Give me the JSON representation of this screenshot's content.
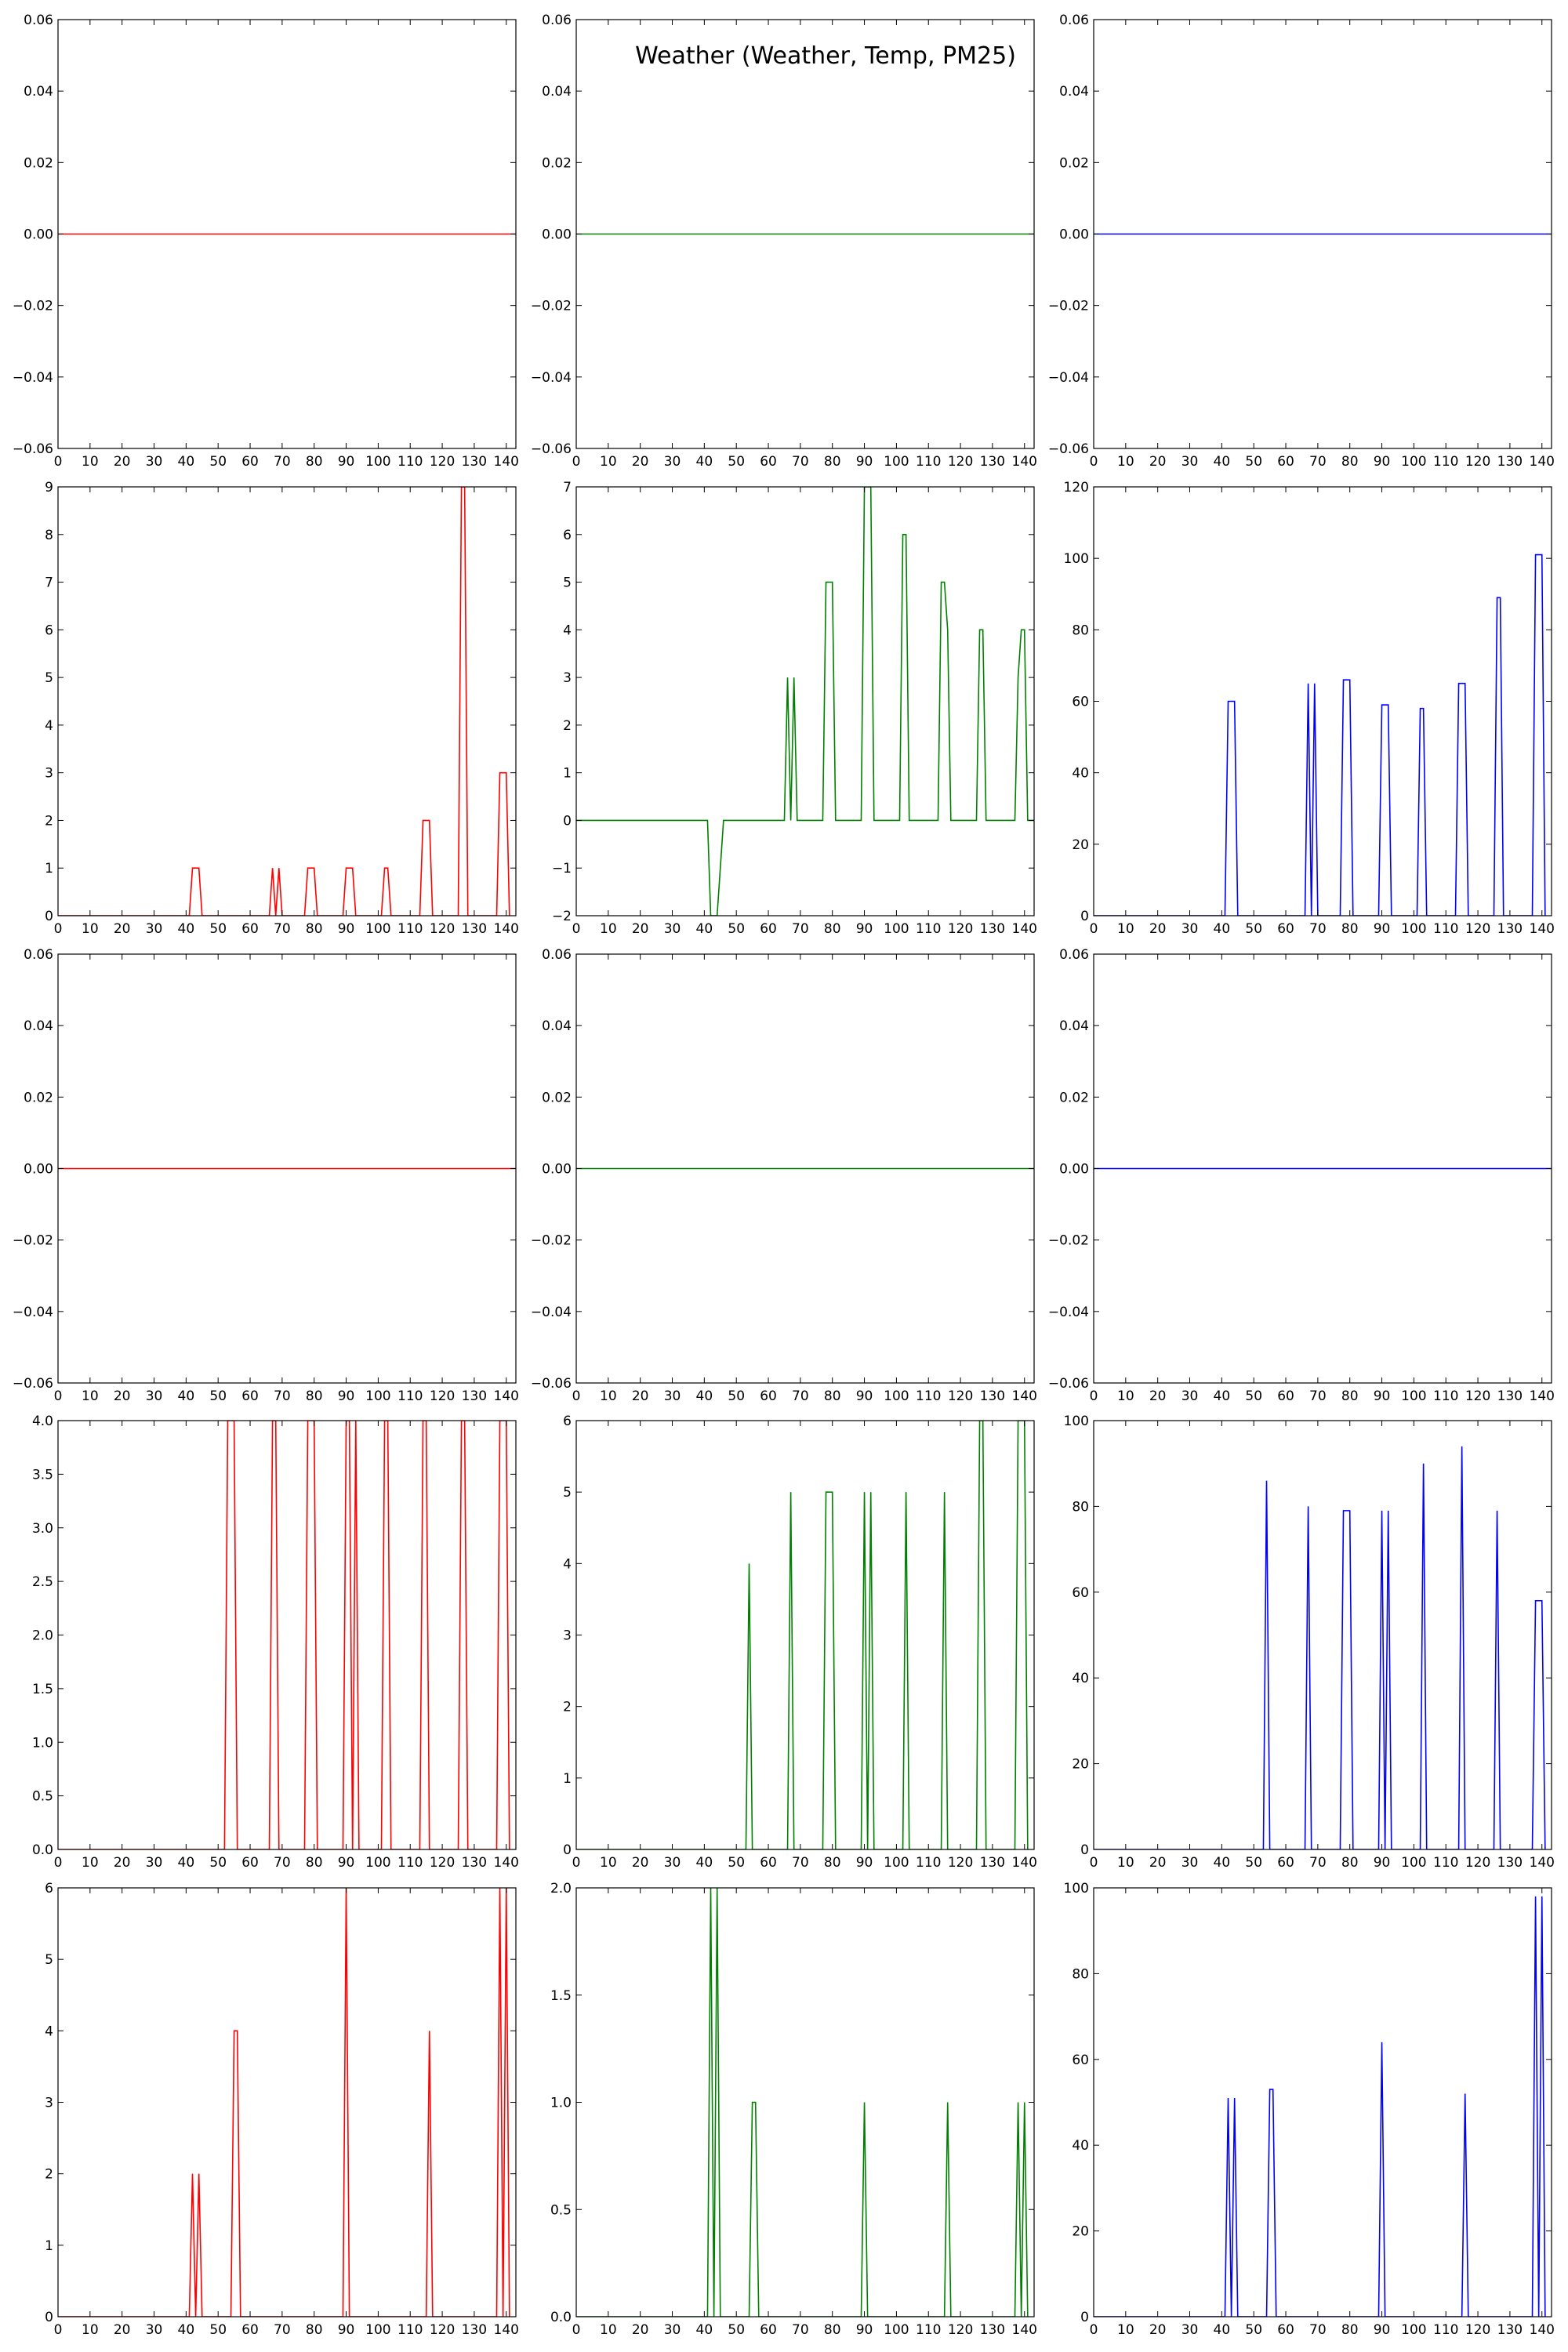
{
  "figure": {
    "title": "Weather (Weather, Temp, PM25)",
    "colors": [
      "#ff0000",
      "#008000",
      "#0000ff"
    ]
  },
  "chart_data": [
    {
      "type": "line",
      "color": "#ff0000",
      "xlim": [
        0,
        143
      ],
      "ylim": [
        -0.06,
        0.06
      ],
      "xticks": [
        0,
        10,
        20,
        30,
        40,
        50,
        60,
        70,
        80,
        90,
        100,
        110,
        120,
        130,
        140
      ],
      "yticks": [
        "−0.06",
        "−0.04",
        "−0.02",
        "0.00",
        "0.02",
        "0.04",
        "0.06"
      ],
      "ytick_values": [
        -0.06,
        -0.04,
        -0.02,
        0,
        0.02,
        0.04,
        0.06
      ],
      "x": [
        0,
        143
      ],
      "y": [
        0,
        0
      ]
    },
    {
      "type": "line",
      "color": "#008000",
      "xlim": [
        0,
        143
      ],
      "ylim": [
        -0.06,
        0.06
      ],
      "xticks": [
        0,
        10,
        20,
        30,
        40,
        50,
        60,
        70,
        80,
        90,
        100,
        110,
        120,
        130,
        140
      ],
      "yticks": [
        "−0.06",
        "−0.04",
        "−0.02",
        "0.00",
        "0.02",
        "0.04",
        "0.06"
      ],
      "ytick_values": [
        -0.06,
        -0.04,
        -0.02,
        0,
        0.02,
        0.04,
        0.06
      ],
      "x": [
        0,
        143
      ],
      "y": [
        0,
        0
      ]
    },
    {
      "type": "line",
      "color": "#0000ff",
      "xlim": [
        0,
        143
      ],
      "ylim": [
        -0.06,
        0.06
      ],
      "xticks": [
        0,
        10,
        20,
        30,
        40,
        50,
        60,
        70,
        80,
        90,
        100,
        110,
        120,
        130,
        140
      ],
      "yticks": [
        "−0.06",
        "−0.04",
        "−0.02",
        "0.00",
        "0.02",
        "0.04",
        "0.06"
      ],
      "ytick_values": [
        -0.06,
        -0.04,
        -0.02,
        0,
        0.02,
        0.04,
        0.06
      ],
      "x": [
        0,
        143
      ],
      "y": [
        0,
        0
      ]
    },
    {
      "type": "line",
      "color": "#ff0000",
      "xlim": [
        0,
        143
      ],
      "ylim": [
        0,
        9
      ],
      "xticks": [
        0,
        10,
        20,
        30,
        40,
        50,
        60,
        70,
        80,
        90,
        100,
        110,
        120,
        130,
        140
      ],
      "yticks": [
        "0",
        "1",
        "2",
        "3",
        "4",
        "5",
        "6",
        "7",
        "8",
        "9"
      ],
      "ytick_values": [
        0,
        1,
        2,
        3,
        4,
        5,
        6,
        7,
        8,
        9
      ],
      "x": [
        0,
        41,
        42,
        44,
        45,
        66,
        67,
        68,
        69,
        70,
        77,
        78,
        80,
        81,
        89,
        90,
        92,
        93,
        101,
        102,
        103,
        104,
        113,
        114,
        116,
        117,
        125,
        126,
        127,
        128,
        137,
        138,
        140,
        141
      ],
      "y": [
        0,
        0,
        1,
        1,
        0,
        0,
        1,
        0,
        1,
        0,
        0,
        1,
        1,
        0,
        0,
        1,
        1,
        0,
        0,
        1,
        1,
        0,
        0,
        2,
        2,
        0,
        0,
        9,
        9,
        0,
        0,
        3,
        3,
        0
      ]
    },
    {
      "type": "line",
      "color": "#008000",
      "xlim": [
        0,
        143
      ],
      "ylim": [
        -2,
        7
      ],
      "xticks": [
        0,
        10,
        20,
        30,
        40,
        50,
        60,
        70,
        80,
        90,
        100,
        110,
        120,
        130,
        140
      ],
      "yticks": [
        "−2",
        "−1",
        "0",
        "1",
        "2",
        "3",
        "4",
        "5",
        "6",
        "7"
      ],
      "ytick_values": [
        -2,
        -1,
        0,
        1,
        2,
        3,
        4,
        5,
        6,
        7
      ],
      "x": [
        0,
        41,
        42,
        44,
        46,
        65,
        66,
        67,
        68,
        69,
        77,
        78,
        80,
        81,
        89,
        90,
        92,
        93,
        101,
        102,
        103,
        104,
        113,
        114,
        115,
        116,
        117,
        125,
        126,
        127,
        128,
        137,
        138,
        139,
        140,
        141,
        143
      ],
      "y": [
        0,
        0,
        -2,
        -2,
        0,
        0,
        3,
        0,
        3,
        0,
        0,
        5,
        5,
        0,
        0,
        7,
        7,
        0,
        0,
        6,
        6,
        0,
        0,
        5,
        5,
        4,
        0,
        0,
        4,
        4,
        0,
        0,
        3,
        4,
        4,
        0,
        0
      ]
    },
    {
      "type": "line",
      "color": "#0000ff",
      "xlim": [
        0,
        143
      ],
      "ylim": [
        0,
        120
      ],
      "xticks": [
        0,
        10,
        20,
        30,
        40,
        50,
        60,
        70,
        80,
        90,
        100,
        110,
        120,
        130,
        140
      ],
      "yticks": [
        "0",
        "20",
        "40",
        "60",
        "80",
        "100",
        "120"
      ],
      "ytick_values": [
        0,
        20,
        40,
        60,
        80,
        100,
        120
      ],
      "x": [
        0,
        41,
        42,
        44,
        45,
        66,
        67,
        68,
        69,
        70,
        77,
        78,
        80,
        81,
        89,
        90,
        92,
        93,
        101,
        102,
        103,
        104,
        113,
        114,
        116,
        117,
        125,
        126,
        127,
        128,
        137,
        138,
        140,
        141
      ],
      "y": [
        0,
        0,
        60,
        60,
        0,
        0,
        65,
        0,
        65,
        0,
        0,
        66,
        66,
        0,
        0,
        59,
        59,
        0,
        0,
        58,
        58,
        0,
        0,
        65,
        65,
        0,
        0,
        89,
        89,
        0,
        0,
        101,
        101,
        0
      ]
    },
    {
      "type": "line",
      "color": "#ff0000",
      "xlim": [
        0,
        143
      ],
      "ylim": [
        -0.06,
        0.06
      ],
      "xticks": [
        0,
        10,
        20,
        30,
        40,
        50,
        60,
        70,
        80,
        90,
        100,
        110,
        120,
        130,
        140
      ],
      "yticks": [
        "−0.06",
        "−0.04",
        "−0.02",
        "0.00",
        "0.02",
        "0.04",
        "0.06"
      ],
      "ytick_values": [
        -0.06,
        -0.04,
        -0.02,
        0,
        0.02,
        0.04,
        0.06
      ],
      "x": [
        0,
        143
      ],
      "y": [
        0,
        0
      ]
    },
    {
      "type": "line",
      "color": "#008000",
      "xlim": [
        0,
        143
      ],
      "ylim": [
        -0.06,
        0.06
      ],
      "xticks": [
        0,
        10,
        20,
        30,
        40,
        50,
        60,
        70,
        80,
        90,
        100,
        110,
        120,
        130,
        140
      ],
      "yticks": [
        "−0.06",
        "−0.04",
        "−0.02",
        "0.00",
        "0.02",
        "0.04",
        "0.06"
      ],
      "ytick_values": [
        -0.06,
        -0.04,
        -0.02,
        0,
        0.02,
        0.04,
        0.06
      ],
      "x": [
        0,
        143
      ],
      "y": [
        0,
        0
      ]
    },
    {
      "type": "line",
      "color": "#0000ff",
      "xlim": [
        0,
        143
      ],
      "ylim": [
        -0.06,
        0.06
      ],
      "xticks": [
        0,
        10,
        20,
        30,
        40,
        50,
        60,
        70,
        80,
        90,
        100,
        110,
        120,
        130,
        140
      ],
      "yticks": [
        "−0.06",
        "−0.04",
        "−0.02",
        "0.00",
        "0.02",
        "0.04",
        "0.06"
      ],
      "ytick_values": [
        -0.06,
        -0.04,
        -0.02,
        0,
        0.02,
        0.04,
        0.06
      ],
      "x": [
        0,
        143
      ],
      "y": [
        0,
        0
      ]
    },
    {
      "type": "line",
      "color": "#ff0000",
      "xlim": [
        0,
        143
      ],
      "ylim": [
        0,
        4
      ],
      "xticks": [
        0,
        10,
        20,
        30,
        40,
        50,
        60,
        70,
        80,
        90,
        100,
        110,
        120,
        130,
        140
      ],
      "yticks": [
        "0.0",
        "0.5",
        "1.0",
        "1.5",
        "2.0",
        "2.5",
        "3.0",
        "3.5",
        "4.0"
      ],
      "ytick_values": [
        0,
        0.5,
        1,
        1.5,
        2,
        2.5,
        3,
        3.5,
        4
      ],
      "x": [
        0,
        52,
        53,
        55,
        56,
        66,
        67,
        68,
        69,
        77,
        78,
        80,
        81,
        89,
        90,
        91,
        92,
        93,
        94,
        101,
        102,
        103,
        104,
        113,
        114,
        115,
        116,
        125,
        126,
        127,
        128,
        137,
        138,
        140,
        141
      ],
      "y": [
        0,
        0,
        4,
        4,
        0,
        0,
        4,
        4,
        0,
        0,
        4,
        4,
        0,
        0,
        4,
        4,
        0,
        4,
        0,
        0,
        4,
        4,
        0,
        0,
        4,
        4,
        0,
        0,
        4,
        4,
        0,
        0,
        4,
        4,
        0
      ]
    },
    {
      "type": "line",
      "color": "#008000",
      "xlim": [
        0,
        143
      ],
      "ylim": [
        0,
        6
      ],
      "xticks": [
        0,
        10,
        20,
        30,
        40,
        50,
        60,
        70,
        80,
        90,
        100,
        110,
        120,
        130,
        140
      ],
      "yticks": [
        "0",
        "1",
        "2",
        "3",
        "4",
        "5",
        "6"
      ],
      "ytick_values": [
        0,
        1,
        2,
        3,
        4,
        5,
        6
      ],
      "x": [
        0,
        53,
        54,
        55,
        66,
        67,
        68,
        77,
        78,
        80,
        81,
        89,
        90,
        91,
        92,
        93,
        102,
        103,
        104,
        114,
        115,
        116,
        125,
        126,
        127,
        128,
        137,
        138,
        140,
        141
      ],
      "y": [
        0,
        0,
        4,
        0,
        0,
        5,
        0,
        0,
        5,
        5,
        0,
        0,
        5,
        0,
        5,
        0,
        0,
        5,
        0,
        0,
        5,
        0,
        0,
        6,
        6,
        0,
        0,
        6,
        6,
        0
      ]
    },
    {
      "type": "line",
      "color": "#0000ff",
      "xlim": [
        0,
        143
      ],
      "ylim": [
        0,
        100
      ],
      "xticks": [
        0,
        10,
        20,
        30,
        40,
        50,
        60,
        70,
        80,
        90,
        100,
        110,
        120,
        130,
        140
      ],
      "yticks": [
        "0",
        "20",
        "40",
        "60",
        "80",
        "100"
      ],
      "ytick_values": [
        0,
        20,
        40,
        60,
        80,
        100
      ],
      "x": [
        0,
        53,
        54,
        55,
        66,
        67,
        68,
        77,
        78,
        80,
        81,
        89,
        90,
        91,
        92,
        93,
        102,
        103,
        104,
        114,
        115,
        116,
        125,
        126,
        127,
        137,
        138,
        140,
        141
      ],
      "y": [
        0,
        0,
        86,
        0,
        0,
        80,
        0,
        0,
        79,
        79,
        0,
        0,
        79,
        0,
        79,
        0,
        0,
        90,
        0,
        0,
        94,
        0,
        0,
        79,
        0,
        0,
        58,
        58,
        0
      ]
    },
    {
      "type": "line",
      "color": "#ff0000",
      "xlim": [
        0,
        143
      ],
      "ylim": [
        0,
        6
      ],
      "xticks": [
        0,
        10,
        20,
        30,
        40,
        50,
        60,
        70,
        80,
        90,
        100,
        110,
        120,
        130,
        140
      ],
      "yticks": [
        "0",
        "1",
        "2",
        "3",
        "4",
        "5",
        "6"
      ],
      "ytick_values": [
        0,
        1,
        2,
        3,
        4,
        5,
        6
      ],
      "x": [
        0,
        41,
        42,
        43,
        44,
        45,
        54,
        55,
        56,
        57,
        89,
        90,
        91,
        115,
        116,
        117,
        137,
        138,
        139,
        140,
        141
      ],
      "y": [
        0,
        0,
        2,
        0,
        2,
        0,
        0,
        4,
        4,
        0,
        0,
        6,
        0,
        0,
        4,
        0,
        0,
        6,
        0,
        6,
        0
      ]
    },
    {
      "type": "line",
      "color": "#008000",
      "xlim": [
        0,
        143
      ],
      "ylim": [
        0,
        2
      ],
      "xticks": [
        0,
        10,
        20,
        30,
        40,
        50,
        60,
        70,
        80,
        90,
        100,
        110,
        120,
        130,
        140
      ],
      "yticks": [
        "0.0",
        "0.5",
        "1.0",
        "1.5",
        "2.0"
      ],
      "ytick_values": [
        0,
        0.5,
        1,
        1.5,
        2
      ],
      "x": [
        0,
        41,
        42,
        43,
        44,
        45,
        54,
        55,
        56,
        57,
        89,
        90,
        91,
        115,
        116,
        117,
        137,
        138,
        139,
        140,
        141
      ],
      "y": [
        0,
        0,
        2,
        0,
        2,
        0,
        0,
        1,
        1,
        0,
        0,
        1,
        0,
        0,
        1,
        0,
        0,
        1,
        0,
        1,
        0
      ]
    },
    {
      "type": "line",
      "color": "#0000ff",
      "xlim": [
        0,
        143
      ],
      "ylim": [
        0,
        100
      ],
      "xticks": [
        0,
        10,
        20,
        30,
        40,
        50,
        60,
        70,
        80,
        90,
        100,
        110,
        120,
        130,
        140
      ],
      "yticks": [
        "0",
        "20",
        "40",
        "60",
        "80",
        "100"
      ],
      "ytick_values": [
        0,
        20,
        40,
        60,
        80,
        100
      ],
      "x": [
        0,
        41,
        42,
        43,
        44,
        45,
        54,
        55,
        56,
        57,
        89,
        90,
        91,
        115,
        116,
        117,
        137,
        138,
        139,
        140,
        141
      ],
      "y": [
        0,
        0,
        51,
        0,
        51,
        0,
        0,
        53,
        53,
        0,
        0,
        64,
        0,
        0,
        52,
        0,
        0,
        98,
        0,
        98,
        0
      ]
    }
  ]
}
